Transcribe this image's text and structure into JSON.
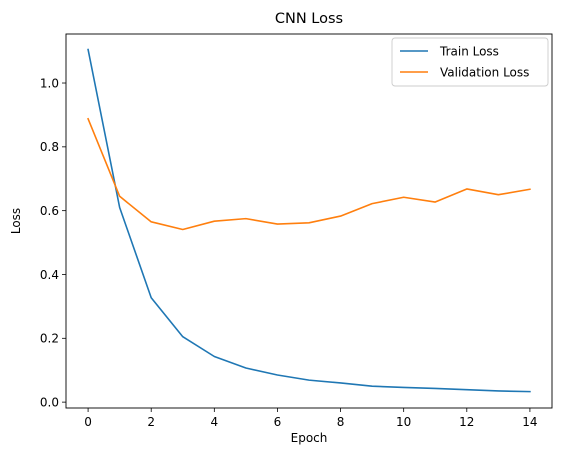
{
  "chart_data": {
    "type": "line",
    "title": "CNN Loss",
    "xlabel": "Epoch",
    "ylabel": "Loss",
    "xlim": [
      -0.7,
      14.7
    ],
    "ylim": [
      -0.0184,
      1.1536
    ],
    "xticks": [
      0,
      2,
      4,
      6,
      8,
      10,
      12,
      14
    ],
    "yticks": [
      0.0,
      0.2,
      0.4,
      0.6,
      0.8,
      1.0
    ],
    "grid": false,
    "legend_position": "upper right",
    "x": [
      0,
      1,
      2,
      3,
      4,
      5,
      6,
      7,
      8,
      9,
      10,
      11,
      12,
      13,
      14
    ],
    "series": [
      {
        "name": "Train Loss",
        "color": "#1f77b4",
        "values": [
          1.105,
          0.61,
          0.327,
          0.205,
          0.143,
          0.107,
          0.085,
          0.069,
          0.06,
          0.05,
          0.046,
          0.043,
          0.039,
          0.035,
          0.033
        ]
      },
      {
        "name": "Validation Loss",
        "color": "#ff7f0e",
        "values": [
          0.888,
          0.645,
          0.565,
          0.541,
          0.567,
          0.575,
          0.558,
          0.562,
          0.583,
          0.622,
          0.642,
          0.627,
          0.668,
          0.65,
          0.667
        ]
      }
    ]
  }
}
